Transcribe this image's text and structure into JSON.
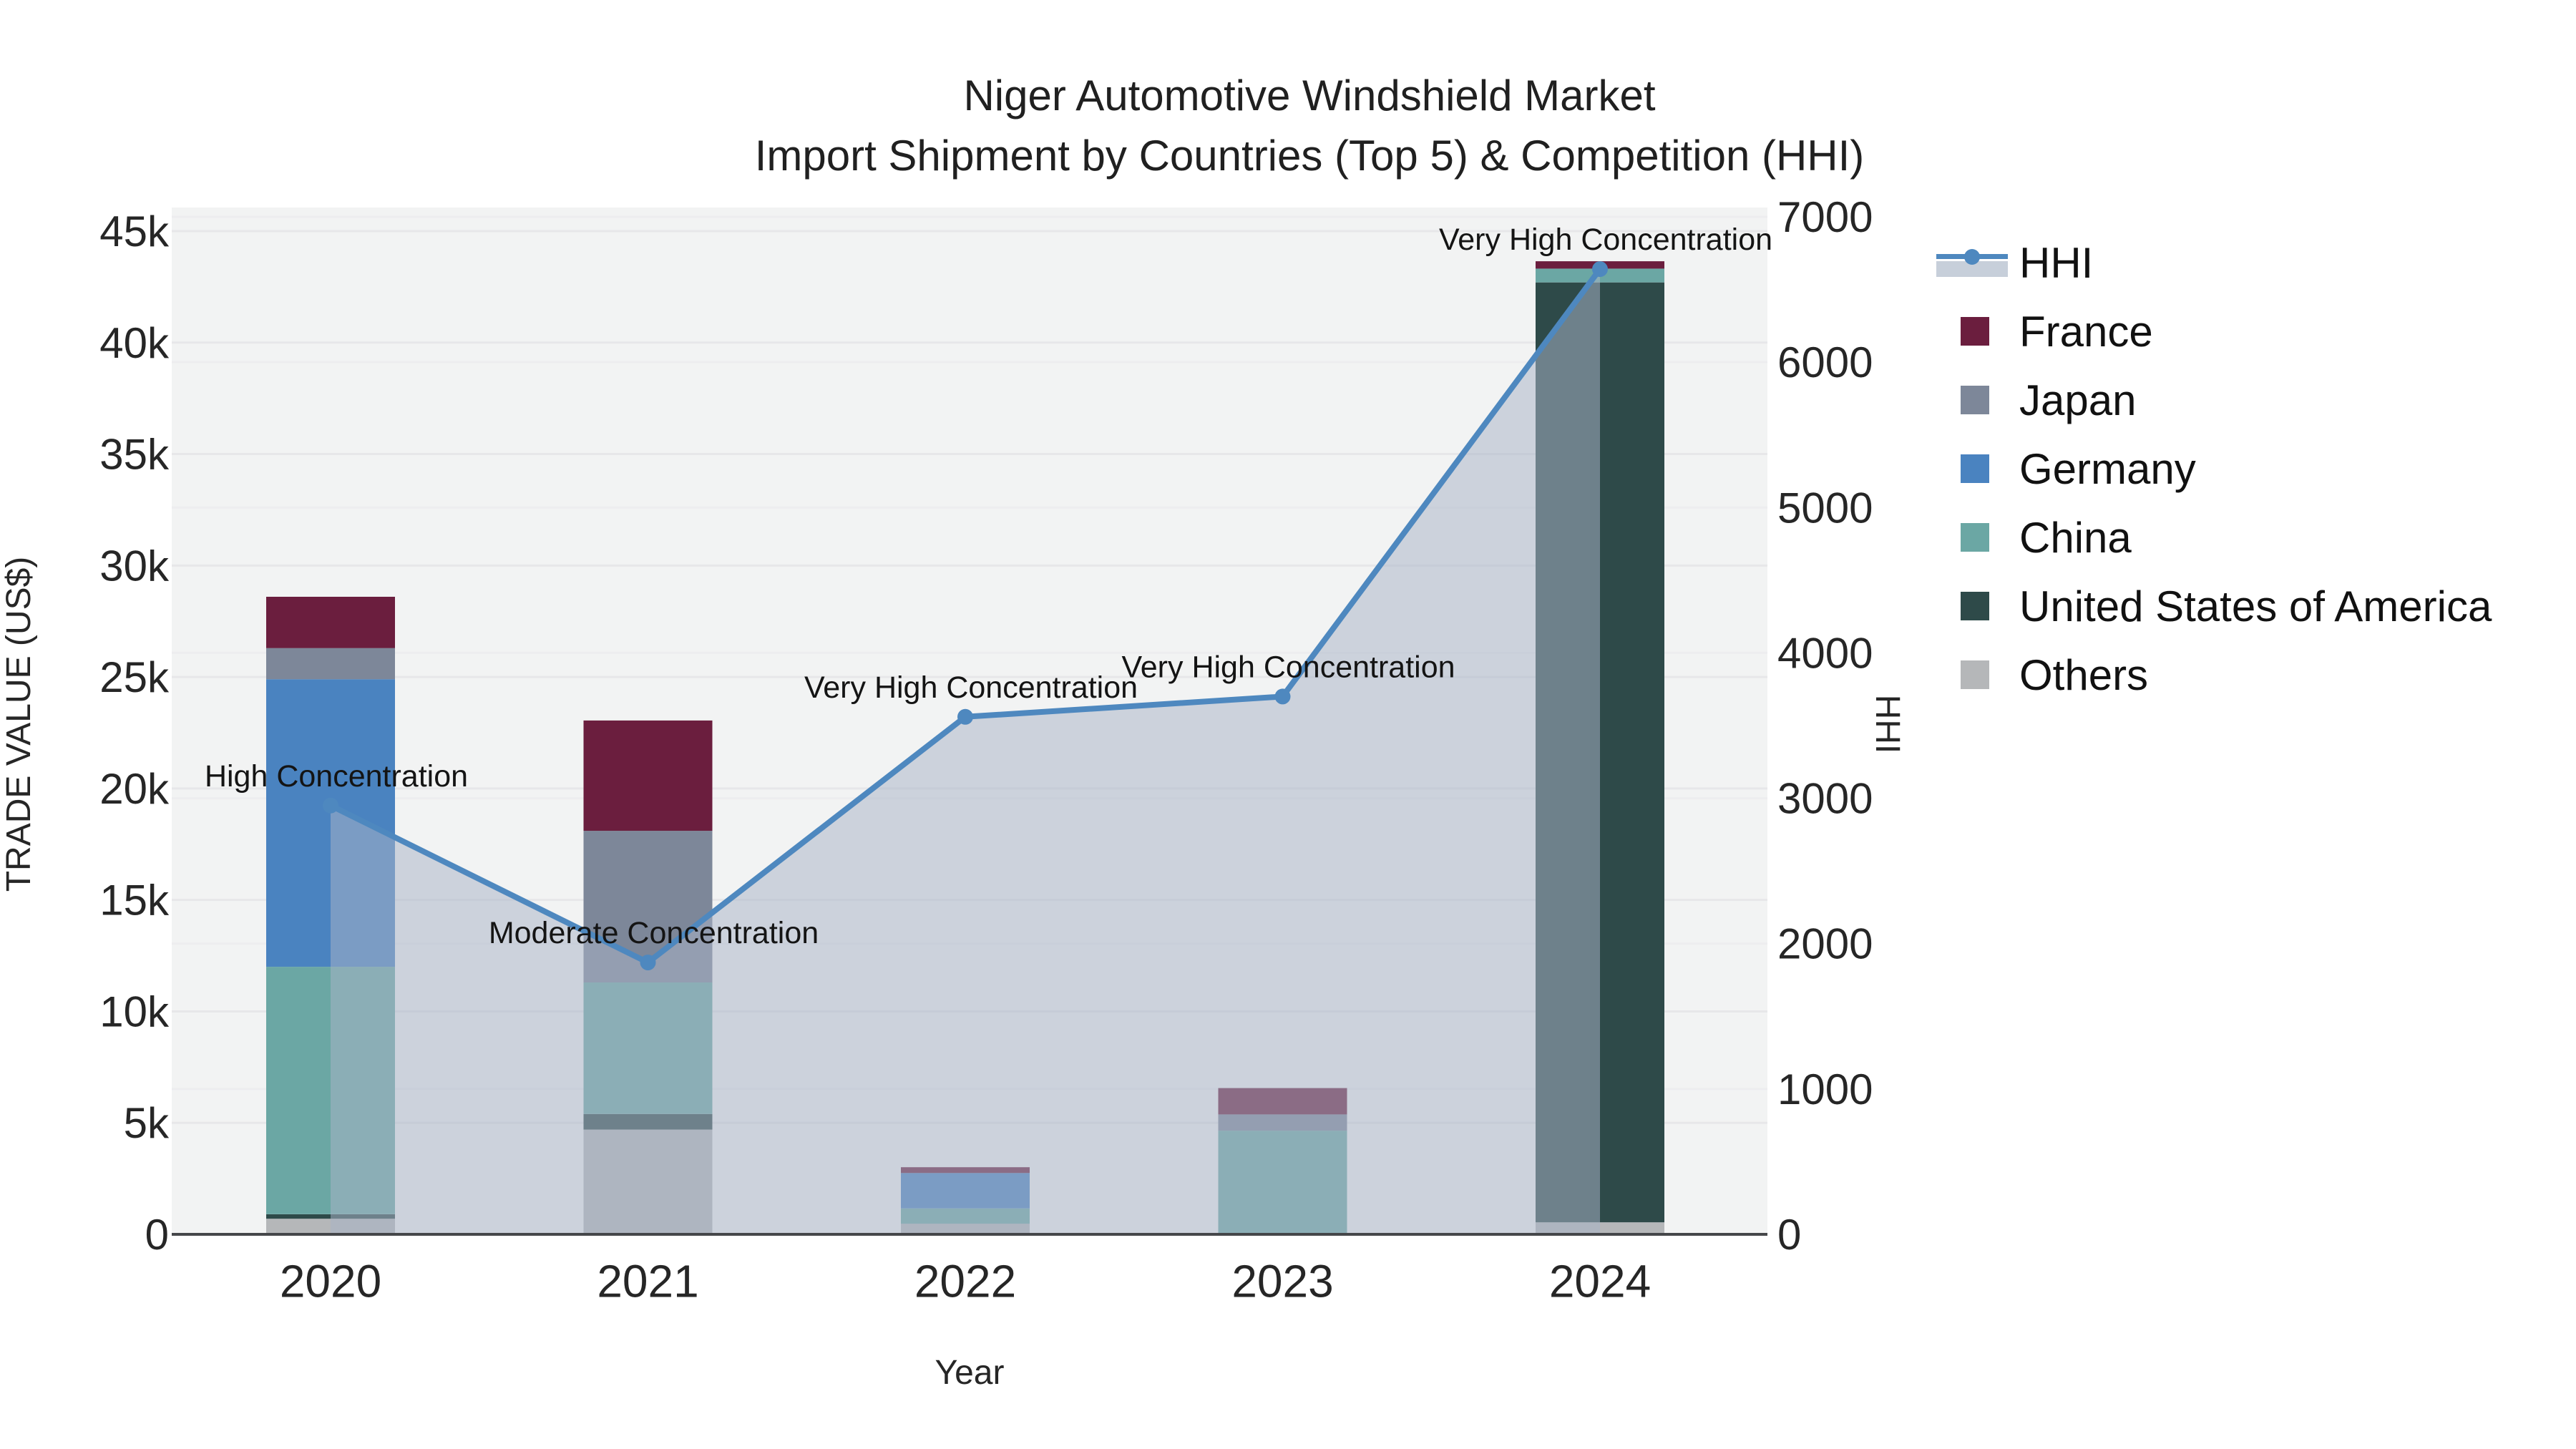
{
  "title": {
    "line1": "Niger Automotive Windshield Market",
    "line2": "Import Shipment by Countries (Top 5) & Competition (HHI)"
  },
  "chart_data": {
    "type": "bar+line",
    "title": "Niger Automotive Windshield Market",
    "subtitle": "Import Shipment by Countries (Top 5) & Competition (HHI)",
    "categories": [
      "2020",
      "2021",
      "2022",
      "2023",
      "2024"
    ],
    "stack_order_bottom_to_top": [
      "Others",
      "United States of America",
      "China",
      "Germany",
      "Japan",
      "France"
    ],
    "bar_series": [
      {
        "name": "Others",
        "color": "#b5b7b9",
        "values": [
          700,
          4700,
          480,
          0,
          540
        ]
      },
      {
        "name": "United States of America",
        "color": "#2e4a49",
        "values": [
          200,
          700,
          0,
          0,
          42160
        ]
      },
      {
        "name": "China",
        "color": "#6ba7a4",
        "values": [
          11100,
          5900,
          680,
          4650,
          620
        ]
      },
      {
        "name": "Germany",
        "color": "#4a83c0",
        "values": [
          12900,
          0,
          1590,
          0,
          0
        ]
      },
      {
        "name": "Japan",
        "color": "#7d8799",
        "values": [
          1400,
          6800,
          0,
          730,
          0
        ]
      },
      {
        "name": "France",
        "color": "#6b1e3e",
        "values": [
          2300,
          4950,
          260,
          1180,
          330
        ]
      }
    ],
    "bar_totals": [
      28600,
      23050,
      3010,
      6560,
      43650
    ],
    "line_series": {
      "name": "HHI",
      "color": "#4e88bf",
      "fill_color": "rgba(168,180,199,0.52)",
      "values": [
        2950,
        1870,
        3560,
        3700,
        6640
      ]
    },
    "annotations": [
      {
        "text": "High Concentration",
        "category": "2020"
      },
      {
        "text": "Moderate Concentration",
        "category": "2021"
      },
      {
        "text": "Very High Concentration",
        "category": "2022"
      },
      {
        "text": "Very High Concentration",
        "category": "2023"
      },
      {
        "text": "Very High Concentration",
        "category": "2024"
      }
    ],
    "y_left": {
      "label": "TRADE VALUE (US$)",
      "tick_values": [
        0,
        5000,
        10000,
        15000,
        20000,
        25000,
        30000,
        35000,
        40000,
        45000
      ],
      "tick_labels": [
        "0",
        "5k",
        "10k",
        "15k",
        "20k",
        "25k",
        "30k",
        "35k",
        "40k",
        "45k"
      ],
      "range": [
        0,
        45000
      ]
    },
    "y_right": {
      "label": "HHI",
      "tick_values": [
        0,
        1000,
        2000,
        3000,
        4000,
        5000,
        6000,
        7000
      ],
      "tick_labels": [
        "0",
        "1000",
        "2000",
        "3000",
        "4000",
        "5000",
        "6000",
        "7000"
      ],
      "range": [
        0,
        7000
      ]
    },
    "x_axis": {
      "label": "Year"
    },
    "legend_order": [
      "HHI",
      "France",
      "Japan",
      "Germany",
      "China",
      "United States of America",
      "Others"
    ],
    "grid": true,
    "legend_position": "right",
    "plot_background": "#f2f3f3"
  }
}
